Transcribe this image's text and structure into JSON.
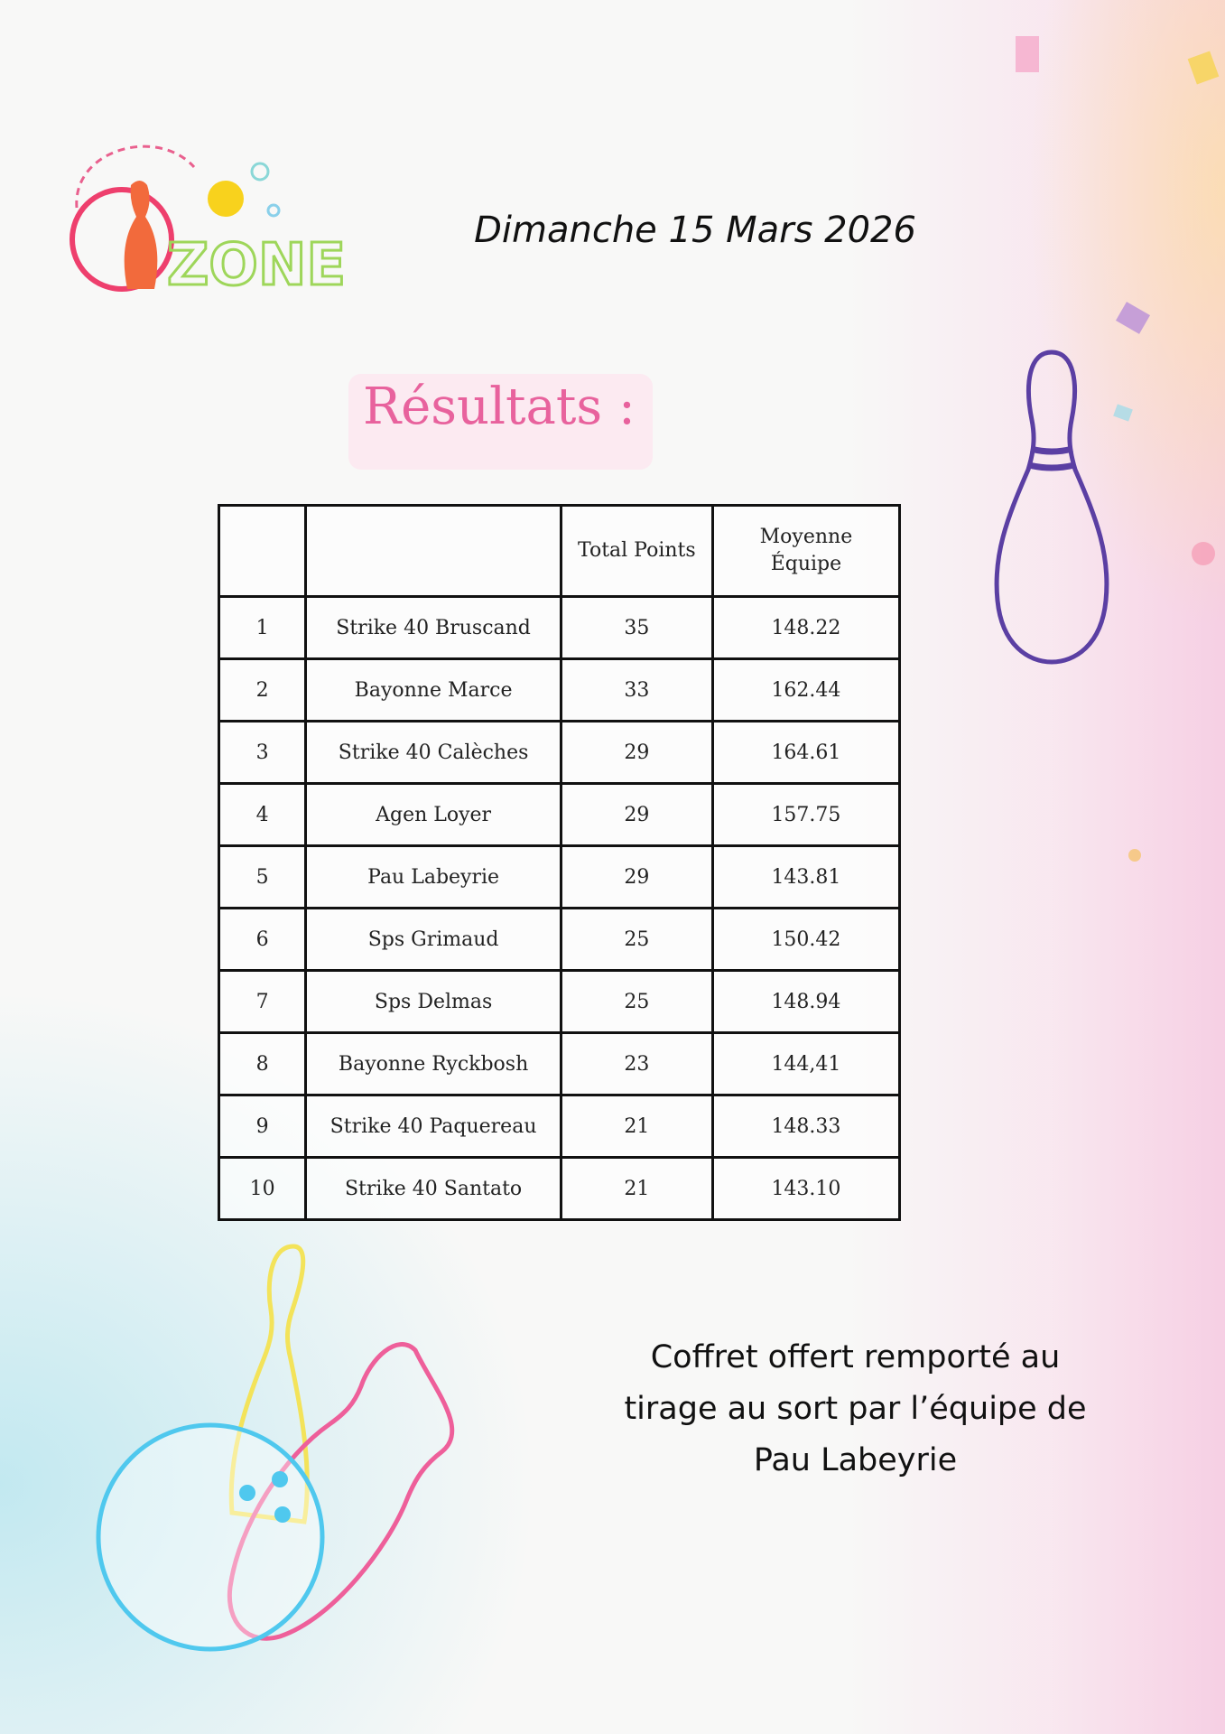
{
  "logo": {
    "text": "ZONE",
    "icon": "bowling-zone-logo"
  },
  "header": {
    "date": "Dimanche 15 Mars 2026"
  },
  "section": {
    "title": "Résultats :"
  },
  "table": {
    "headers": [
      "",
      "",
      "Total Points",
      "Moyenne Équipe"
    ],
    "rows": [
      [
        "1",
        "Strike 40 Bruscand",
        "35",
        "148.22"
      ],
      [
        "2",
        "Bayonne Marce",
        "33",
        "162.44"
      ],
      [
        "3",
        "Strike 40 Calèches",
        "29",
        "164.61"
      ],
      [
        "4",
        "Agen Loyer",
        "29",
        "157.75"
      ],
      [
        "5",
        "Pau Labeyrie",
        "29",
        "143.81"
      ],
      [
        "6",
        "Sps Grimaud",
        "25",
        "150.42"
      ],
      [
        "7",
        "Sps Delmas",
        "25",
        "148.94"
      ],
      [
        "8",
        "Bayonne Ryckbosh",
        "23",
        "144,41"
      ],
      [
        "9",
        "Strike 40 Paquereau",
        "21",
        "148.33"
      ],
      [
        "10",
        "Strike 40 Santato",
        "21",
        "143.10"
      ]
    ]
  },
  "prize": {
    "lines": [
      "Coffret offert remporté au",
      "tirage au sort par l’équipe de",
      "Pau Labeyrie"
    ]
  },
  "colors": {
    "accent_pink": "#e8629d",
    "pin_purple": "#5b3fa3",
    "neon_blue": "#4fc8ee",
    "neon_yellow": "#f3e35a",
    "neon_pink": "#ee5f9a"
  }
}
